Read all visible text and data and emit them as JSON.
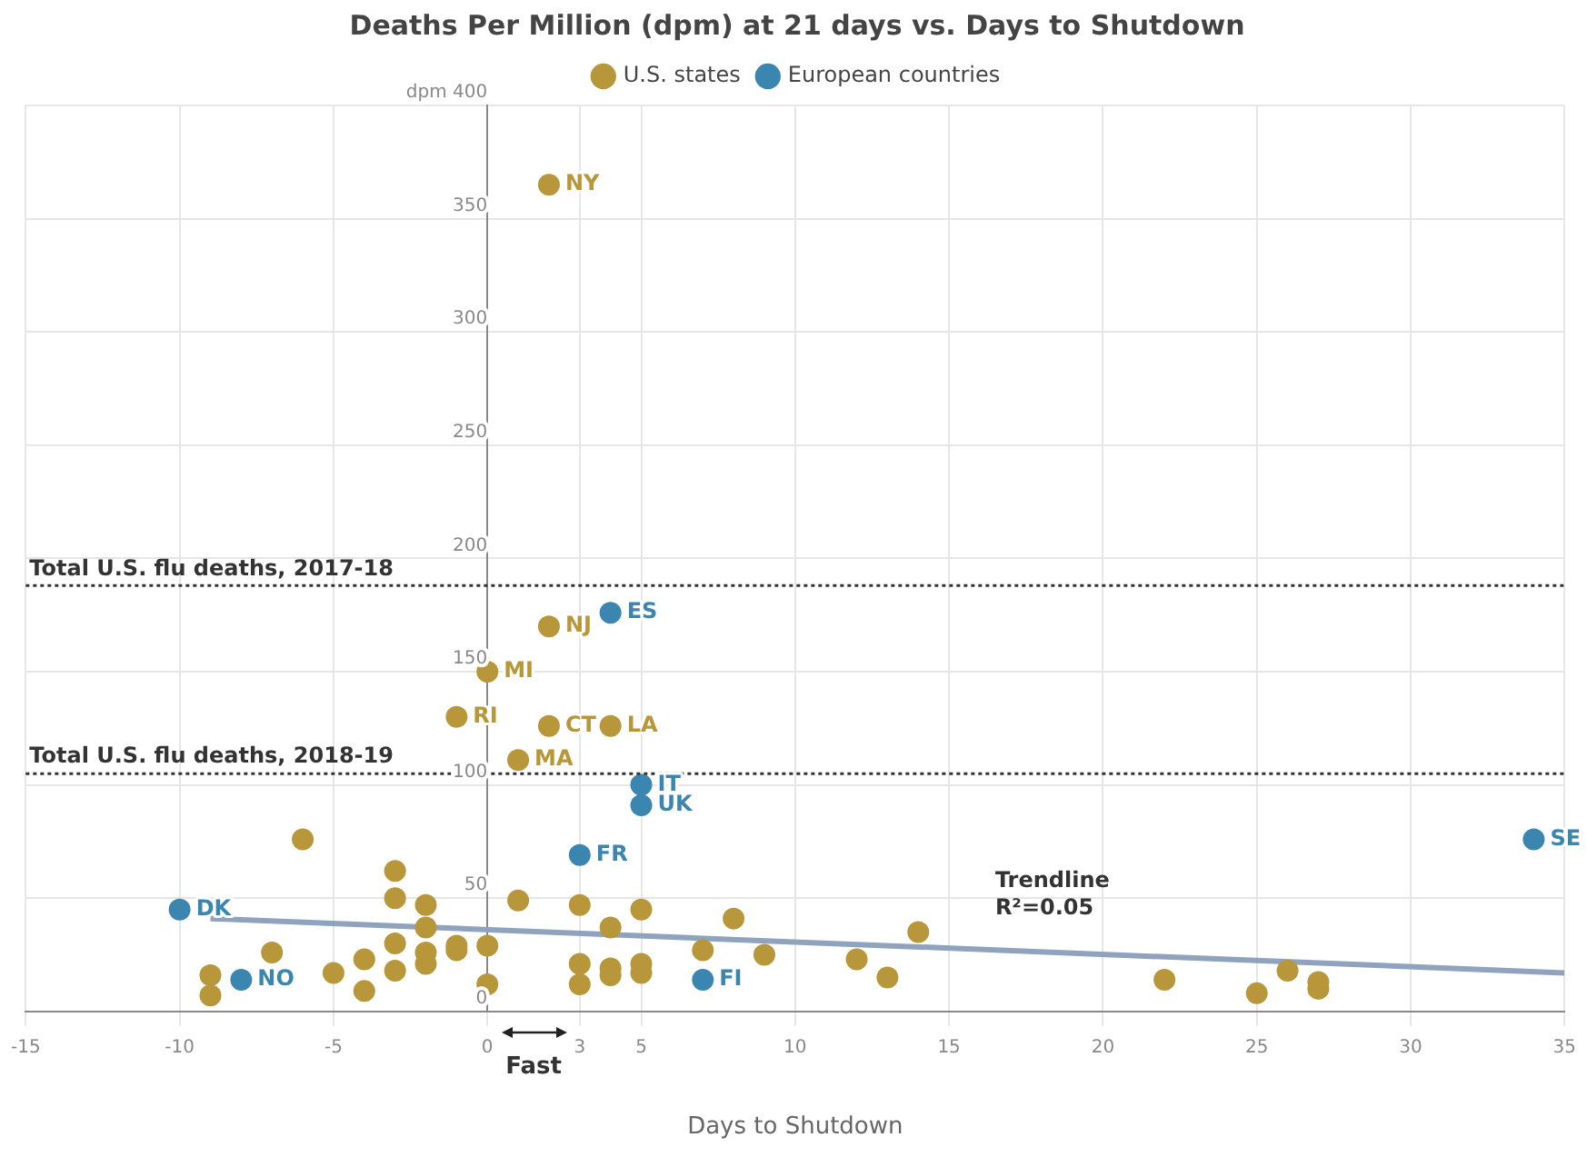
{
  "chart_data": {
    "type": "scatter",
    "title": "Deaths Per Million (dpm) at 21 days vs. Days to Shutdown",
    "xlabel": "Days to Shutdown",
    "legend": "top",
    "grid": true,
    "marker": "circle",
    "xlim": [
      -15,
      35
    ],
    "xticks": [
      -15,
      -10,
      -5,
      0,
      3,
      5,
      10,
      15,
      20,
      25,
      30,
      35
    ],
    "ylim": [
      0,
      400
    ],
    "yticks": [
      0,
      50,
      100,
      150,
      200,
      250,
      300,
      350,
      {
        "value": 400,
        "label": "dpm 400"
      }
    ],
    "series": [
      {
        "name": "U.S. states",
        "color": "#b8963a",
        "x": [
          2,
          2,
          0,
          -1,
          2,
          4,
          1,
          -6,
          -3,
          -3,
          -2,
          -2,
          1,
          3,
          4,
          5,
          7,
          9,
          8,
          -7,
          -9,
          -9,
          -5,
          -4,
          -4,
          -3,
          -3,
          -2,
          -2,
          -1,
          -1,
          0,
          0,
          3,
          3,
          4,
          4,
          5,
          5,
          12,
          13,
          14,
          22,
          25,
          26,
          27,
          27
        ],
        "values": [
          365,
          170,
          150,
          130,
          126,
          126,
          111,
          76,
          62,
          50,
          47,
          37,
          49,
          47,
          37,
          45,
          27,
          25,
          41,
          26,
          16,
          7,
          17,
          23,
          9,
          30,
          18,
          26,
          21,
          29,
          27,
          29,
          12,
          21,
          12,
          19,
          16,
          21,
          17,
          23,
          15,
          35,
          14,
          8,
          18,
          13,
          10
        ]
      },
      {
        "name": "European countries",
        "color": "#3a86b0",
        "x": [
          4,
          5,
          5,
          3,
          -10,
          -8,
          7,
          34
        ],
        "values": [
          176,
          100,
          91,
          69,
          45,
          14,
          14,
          76
        ]
      },
      {
        "type": "line",
        "marker": "none",
        "color": "#8fa3bf",
        "x": [
          -9,
          35
        ],
        "values": [
          41,
          17
        ]
      }
    ],
    "ref_lines": [
      {
        "axis": "y",
        "value": 188,
        "label": "Total U.S. flu deaths, 2017-18",
        "line_style": "dotted",
        "color": "#333333"
      },
      {
        "axis": "y",
        "value": 105,
        "label": "Total U.S. flu deaths, 2018-19",
        "line_style": "dotted",
        "color": "#333333"
      }
    ],
    "annotations": [
      {
        "text": "NY",
        "x": 2,
        "y": 365
      },
      {
        "text": "NJ",
        "x": 2,
        "y": 170
      },
      {
        "text": "MI",
        "x": 0,
        "y": 150
      },
      {
        "text": "RI",
        "x": -1,
        "y": 130
      },
      {
        "text": "CT",
        "x": 2,
        "y": 126
      },
      {
        "text": "LA",
        "x": 4,
        "y": 126
      },
      {
        "text": "MA",
        "x": 1,
        "y": 111
      },
      {
        "text": "ES",
        "x": 4,
        "y": 176
      },
      {
        "text": "IT",
        "x": 5,
        "y": 100
      },
      {
        "text": "UK",
        "x": 5,
        "y": 91
      },
      {
        "text": "FR",
        "x": 3,
        "y": 69
      },
      {
        "text": "DK",
        "x": -10,
        "y": 45
      },
      {
        "text": "NO",
        "x": -8,
        "y": 14
      },
      {
        "text": "FI",
        "x": 7,
        "y": 14
      },
      {
        "text": "SE",
        "x": 34,
        "y": 76
      },
      "Trendline\nR²=0.05",
      "Fast"
    ]
  }
}
